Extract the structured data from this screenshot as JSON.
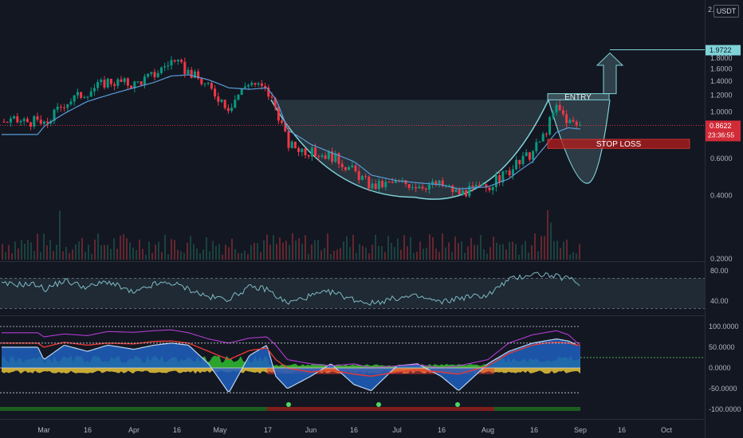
{
  "header": {
    "currency": "USDT",
    "top_tick": "2."
  },
  "colors": {
    "background": "#131722",
    "up": "#089981",
    "down": "#f23645",
    "ma": "#5b9bd5",
    "target": "#7fd3d8",
    "stop": "#b71c1c",
    "rsi": "#7fb9c3",
    "osc_blue": "#1e5fbf",
    "osc_green": "#32c832",
    "osc_yellow": "#e8c43a",
    "osc_red": "#e53935",
    "osc_purple": "#b03cd0"
  },
  "annotations": {
    "entry_label": "ENTRY",
    "stop_loss_label": "STOP LOSS",
    "target_price": "1.9722",
    "last_price": "0.8622",
    "countdown": "23:36:55"
  },
  "chart_data": [
    {
      "type": "candlestick",
      "title": "",
      "yscale": "log",
      "ylim": [
        0.19,
        2.0
      ],
      "y_ticks": [
        "1.8000",
        "1.6000",
        "1.4000",
        "1.2000",
        "1.0000",
        "0.8000",
        "0.6000",
        "0.4000",
        "0.2000"
      ],
      "x_ticks": [
        "Mar",
        "16",
        "Apr",
        "16",
        "May",
        "17",
        "Jun",
        "16",
        "Jul",
        "16",
        "Aug",
        "16",
        "Sep",
        "16",
        "Oct"
      ],
      "close_series": {
        "name": "",
        "x": [
          "Feb 23",
          "Mar 1",
          "Mar 8",
          "Mar 16",
          "Mar 23",
          "Apr 1",
          "Apr 8",
          "Apr 14",
          "Apr 20",
          "Apr 27",
          "May 4",
          "May 11",
          "May 17",
          "May 20",
          "May 24",
          "Jun 1",
          "Jun 8",
          "Jun 16",
          "Jun 22",
          "Jul 1",
          "Jul 8",
          "Jul 16",
          "Jul 22",
          "Aug 1",
          "Aug 8",
          "Aug 16",
          "Aug 20",
          "Aug 24",
          "Aug 28",
          "Aug 31"
        ],
        "values": [
          0.9,
          0.85,
          1.1,
          1.25,
          1.4,
          1.35,
          1.5,
          1.75,
          1.55,
          1.3,
          1.05,
          1.4,
          1.25,
          1.05,
          0.7,
          0.64,
          0.62,
          0.52,
          0.44,
          0.46,
          0.45,
          0.45,
          0.41,
          0.44,
          0.52,
          0.64,
          0.78,
          1.05,
          0.9,
          0.86
        ]
      },
      "moving_average": [
        0.78,
        0.85,
        0.98,
        1.12,
        1.2,
        1.3,
        1.38,
        1.48,
        1.5,
        1.42,
        1.3,
        1.28,
        1.3,
        1.15,
        0.82,
        0.7,
        0.64,
        0.58,
        0.5,
        0.47,
        0.46,
        0.45,
        0.43,
        0.44,
        0.48,
        0.58,
        0.68,
        0.8,
        0.84,
        0.83
      ],
      "pattern": {
        "name": "cup and handle",
        "rim_price": 1.14,
        "cup_bottom_price": 0.41,
        "entry_zone": [
          1.14,
          1.22
        ],
        "stop_loss_zone": [
          0.67,
          0.74
        ],
        "target": 1.9722
      }
    },
    {
      "type": "line",
      "title": "",
      "ylim": [
        30,
        90
      ],
      "levels": [
        70,
        30
      ],
      "y_ticks": [
        "80.00",
        "40.00"
      ],
      "series": [
        {
          "name": "",
          "values": [
            62,
            55,
            67,
            58,
            66,
            50,
            62,
            64,
            56,
            45,
            43,
            58,
            56,
            47,
            37,
            47,
            52,
            42,
            37,
            44,
            46,
            38,
            44,
            48,
            68,
            76,
            75,
            72,
            70,
            64
          ]
        }
      ]
    },
    {
      "type": "area",
      "title": "",
      "ylim": [
        -100,
        100
      ],
      "y_ticks": [
        "100.0000",
        "50.0000",
        "0.0000",
        "-50.0000",
        "-100.0000"
      ],
      "levels": [
        100,
        60,
        0,
        -60
      ],
      "series": [
        {
          "name": "",
          "values": [
            50,
            20,
            55,
            40,
            55,
            45,
            55,
            60,
            55,
            10,
            -60,
            30,
            55,
            -20,
            -50,
            -20,
            10,
            -40,
            -55,
            5,
            10,
            -20,
            -55,
            10,
            40,
            60,
            65,
            70,
            65,
            55
          ]
        },
        {
          "name": "",
          "values": [
            85,
            75,
            82,
            78,
            88,
            86,
            90,
            92,
            85,
            70,
            60,
            72,
            75,
            55,
            20,
            10,
            5,
            10,
            0,
            5,
            8,
            0,
            5,
            20,
            60,
            80,
            85,
            90,
            80,
            60
          ]
        },
        {
          "name": "",
          "values": [
            60,
            50,
            62,
            55,
            60,
            58,
            64,
            65,
            60,
            40,
            20,
            42,
            48,
            20,
            0,
            -10,
            -5,
            -15,
            -20,
            -10,
            -5,
            -10,
            -15,
            5,
            35,
            55,
            60,
            62,
            60,
            55
          ]
        }
      ]
    }
  ]
}
